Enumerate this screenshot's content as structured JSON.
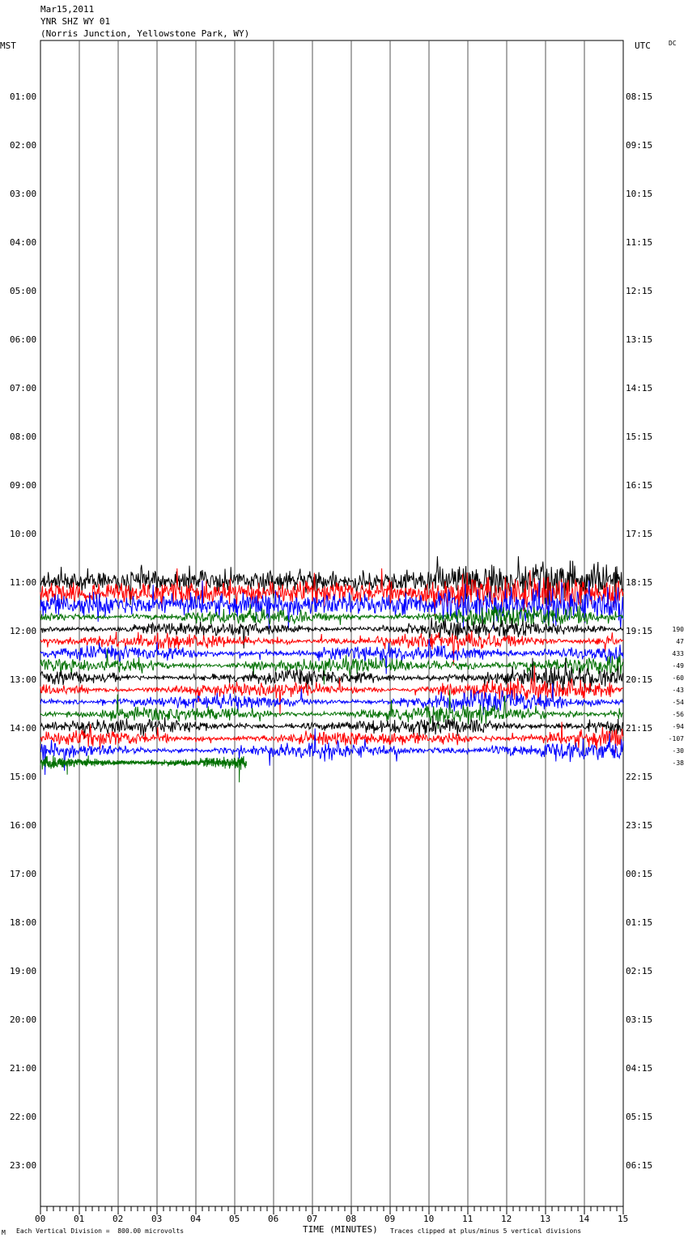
{
  "header": {
    "date": "Mar15,2011",
    "station": "YNR SHZ WY 01",
    "location": "(Norris Junction, Yellowstone Park, WY)"
  },
  "left_axis_title": "MST",
  "right_axis_title": "UTC",
  "dc_label": "DC",
  "footer": {
    "corner_mark": "M",
    "division_note": "Each Vertical Division =  800.00 microvolts",
    "xlabel": "TIME (MINUTES)",
    "clip_note": "Traces clipped at plus/minus 5 vertical divisions"
  },
  "chart_data": {
    "type": "line",
    "title": "YNR SHZ WY 01",
    "xlabel": "TIME (MINUTES)",
    "ylabel": "MST",
    "xlim": [
      0,
      15
    ],
    "x_ticks": [
      "00",
      "01",
      "02",
      "03",
      "04",
      "05",
      "06",
      "07",
      "08",
      "09",
      "10",
      "11",
      "12",
      "13",
      "14",
      "15"
    ],
    "mst_ticks": [
      "01:00",
      "02:00",
      "03:00",
      "04:00",
      "05:00",
      "06:00",
      "07:00",
      "08:00",
      "09:00",
      "10:00",
      "11:00",
      "12:00",
      "13:00",
      "14:00",
      "15:00",
      "16:00",
      "17:00",
      "18:00",
      "19:00",
      "20:00",
      "21:00",
      "22:00",
      "23:00"
    ],
    "utc_ticks": [
      "08:15",
      "09:15",
      "10:15",
      "11:15",
      "12:15",
      "13:15",
      "14:15",
      "15:15",
      "16:15",
      "17:15",
      "18:15",
      "19:15",
      "20:15",
      "21:15",
      "22:15",
      "23:15",
      "00:15",
      "01:15",
      "02:15",
      "03:15",
      "04:15",
      "05:15",
      "06:15"
    ],
    "trace_colors": [
      "#000000",
      "#ff0000",
      "#0000ff",
      "#007000"
    ],
    "rows_with_data_mst": [
      "11:00",
      "11:15",
      "11:30",
      "11:45",
      "12:00",
      "12:15",
      "12:30",
      "12:45",
      "13:00",
      "13:15",
      "13:30",
      "13:45",
      "14:00",
      "14:15",
      "14:30",
      "14:45"
    ],
    "dc_offsets": [
      "190",
      "47",
      "433",
      "-49",
      "-60",
      "-43",
      "-54",
      "-56",
      "-94",
      "-107",
      "-30",
      "-38"
    ],
    "division_microvolts": 800.0,
    "clip_divisions": 5
  }
}
